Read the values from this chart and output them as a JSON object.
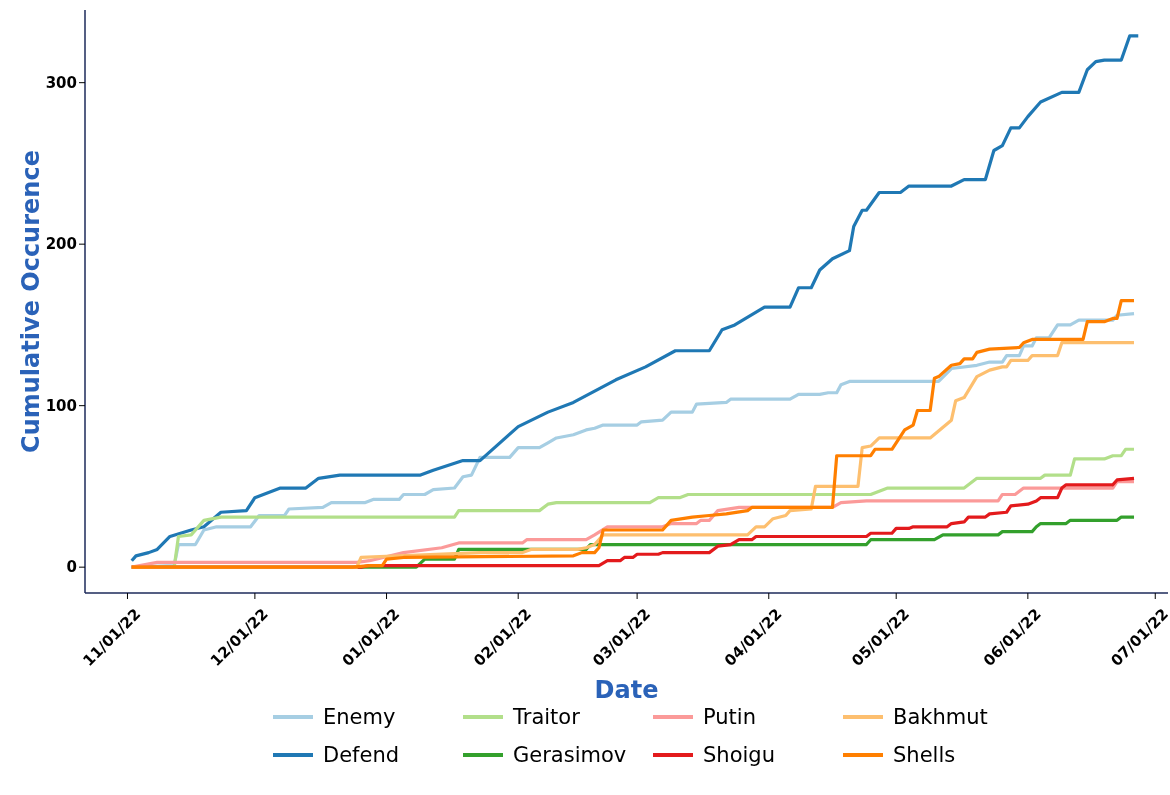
{
  "chart_data": {
    "type": "line",
    "xlabel": "Date",
    "ylabel": "Cumulative Occurence",
    "xlim": [
      "2022-10-22",
      "2023-07-04"
    ],
    "ylim": [
      -16,
      345
    ],
    "xticks": [
      {
        "value": "2022-11-01",
        "label": "11/01/22"
      },
      {
        "value": "2022-12-01",
        "label": "12/01/22"
      },
      {
        "value": "2023-01-01",
        "label": "01/01/22"
      },
      {
        "value": "2023-02-01",
        "label": "02/01/22"
      },
      {
        "value": "2023-03-01",
        "label": "03/01/22"
      },
      {
        "value": "2023-04-01",
        "label": "04/01/22"
      },
      {
        "value": "2023-05-01",
        "label": "05/01/22"
      },
      {
        "value": "2023-06-01",
        "label": "06/01/22"
      },
      {
        "value": "2023-07-01",
        "label": "07/01/22"
      }
    ],
    "yticks": [
      0,
      100,
      200,
      300
    ],
    "legend": "bottom",
    "line_style": "solid",
    "series": [
      {
        "name": "Enemy",
        "color": "#a6cee3",
        "x": [
          "2022-11-02",
          "2022-11-12",
          "2022-11-13",
          "2022-11-17",
          "2022-11-19",
          "2022-11-22",
          "2022-11-30",
          "2022-12-02",
          "2022-12-08",
          "2022-12-09",
          "2022-12-17",
          "2022-12-19",
          "2022-12-27",
          "2022-12-29",
          "2023-01-04",
          "2023-01-05",
          "2023-01-10",
          "2023-01-12",
          "2023-01-17",
          "2023-01-19",
          "2023-01-21",
          "2023-01-23",
          "2023-01-30",
          "2023-02-01",
          "2023-02-06",
          "2023-02-08",
          "2023-02-10",
          "2023-02-14",
          "2023-02-17",
          "2023-02-19",
          "2023-02-21",
          "2023-03-01",
          "2023-03-02",
          "2023-03-07",
          "2023-03-09",
          "2023-03-14",
          "2023-03-15",
          "2023-03-22",
          "2023-03-23",
          "2023-04-06",
          "2023-04-08",
          "2023-04-13",
          "2023-04-15",
          "2023-04-17",
          "2023-04-18",
          "2023-04-20",
          "2023-05-11",
          "2023-05-14",
          "2023-05-20",
          "2023-05-23",
          "2023-05-26",
          "2023-05-27",
          "2023-05-30",
          "2023-05-31",
          "2023-06-02",
          "2023-06-03",
          "2023-06-06",
          "2023-06-08",
          "2023-06-11",
          "2023-06-13",
          "2023-06-21",
          "2023-06-22",
          "2023-06-26"
        ],
        "values": [
          0,
          1,
          14,
          14,
          23,
          25,
          25,
          32,
          32,
          36,
          37,
          40,
          40,
          42,
          42,
          45,
          45,
          48,
          49,
          56,
          57,
          68,
          68,
          74,
          74,
          77,
          80,
          82,
          85,
          86,
          88,
          88,
          90,
          91,
          96,
          96,
          101,
          102,
          104,
          104,
          107,
          107,
          108,
          108,
          113,
          115,
          115,
          123,
          125,
          127,
          127,
          131,
          131,
          137,
          137,
          142,
          142,
          150,
          150,
          153,
          153,
          156,
          157
        ]
      },
      {
        "name": "Defend",
        "color": "#1f78b4",
        "x": [
          "2022-11-02",
          "2022-11-03",
          "2022-11-06",
          "2022-11-08",
          "2022-11-11",
          "2022-11-16",
          "2022-11-19",
          "2022-11-23",
          "2022-11-29",
          "2022-12-01",
          "2022-12-07",
          "2022-12-13",
          "2022-12-16",
          "2022-12-21",
          "2023-01-09",
          "2023-01-12",
          "2023-01-19",
          "2023-01-23",
          "2023-02-01",
          "2023-02-08",
          "2023-02-14",
          "2023-02-24",
          "2023-03-03",
          "2023-03-10",
          "2023-03-18",
          "2023-03-21",
          "2023-03-24",
          "2023-03-31",
          "2023-04-06",
          "2023-04-08",
          "2023-04-11",
          "2023-04-13",
          "2023-04-16",
          "2023-04-20",
          "2023-04-21",
          "2023-04-23",
          "2023-04-24",
          "2023-04-27",
          "2023-05-02",
          "2023-05-04",
          "2023-05-14",
          "2023-05-17",
          "2023-05-22",
          "2023-05-24",
          "2023-05-26",
          "2023-05-28",
          "2023-05-30",
          "2023-06-01",
          "2023-06-04",
          "2023-06-09",
          "2023-06-13",
          "2023-06-15",
          "2023-06-17",
          "2023-06-19",
          "2023-06-23",
          "2023-06-25",
          "2023-06-27"
        ],
        "values": [
          4,
          7,
          9,
          11,
          19,
          23,
          25,
          34,
          35,
          43,
          49,
          49,
          55,
          57,
          57,
          60,
          66,
          66,
          87,
          96,
          102,
          116,
          124,
          134,
          134,
          147,
          150,
          161,
          161,
          173,
          173,
          184,
          191,
          196,
          211,
          221,
          221,
          232,
          232,
          236,
          236,
          240,
          240,
          258,
          261,
          272,
          272,
          279,
          288,
          294,
          294,
          308,
          313,
          314,
          314,
          329,
          329
        ]
      },
      {
        "name": "Traitor",
        "color": "#b2df8a",
        "x": [
          "2022-11-02",
          "2022-11-12",
          "2022-11-13",
          "2022-11-16",
          "2022-11-19",
          "2022-11-23",
          "2023-01-17",
          "2023-01-18",
          "2023-02-06",
          "2023-02-08",
          "2023-02-10",
          "2023-03-04",
          "2023-03-06",
          "2023-03-11",
          "2023-03-13",
          "2023-04-25",
          "2023-04-27",
          "2023-04-29",
          "2023-05-17",
          "2023-05-20",
          "2023-06-04",
          "2023-06-05",
          "2023-06-11",
          "2023-06-12",
          "2023-06-19",
          "2023-06-21",
          "2023-06-23",
          "2023-06-24",
          "2023-06-26"
        ],
        "values": [
          0,
          0,
          19,
          20,
          29,
          31,
          31,
          35,
          35,
          39,
          40,
          40,
          43,
          43,
          45,
          45,
          47,
          49,
          49,
          55,
          55,
          57,
          57,
          67,
          67,
          69,
          69,
          73,
          73
        ]
      },
      {
        "name": "Gerasimov",
        "color": "#33a02c",
        "x": [
          "2022-11-02",
          "2023-01-08",
          "2023-01-10",
          "2023-01-17",
          "2023-01-18",
          "2023-02-17",
          "2023-02-18",
          "2023-04-24",
          "2023-04-25",
          "2023-05-10",
          "2023-05-12",
          "2023-05-25",
          "2023-05-26",
          "2023-06-02",
          "2023-06-03",
          "2023-06-04",
          "2023-06-10",
          "2023-06-11",
          "2023-06-22",
          "2023-06-23",
          "2023-06-26"
        ],
        "values": [
          0,
          0,
          5,
          5,
          11,
          11,
          14,
          14,
          17,
          17,
          20,
          20,
          22,
          22,
          25,
          27,
          27,
          29,
          29,
          31,
          31
        ]
      },
      {
        "name": "Putin",
        "color": "#fb9a99",
        "x": [
          "2022-11-02",
          "2022-11-08",
          "2022-12-25",
          "2022-12-28",
          "2023-01-05",
          "2023-01-14",
          "2023-01-18",
          "2023-02-02",
          "2023-02-03",
          "2023-02-17",
          "2023-02-19",
          "2023-02-22",
          "2023-03-07",
          "2023-03-09",
          "2023-03-15",
          "2023-03-16",
          "2023-03-18",
          "2023-03-20",
          "2023-03-25",
          "2023-04-16",
          "2023-04-18",
          "2023-04-24",
          "2023-05-25",
          "2023-05-26",
          "2023-05-29",
          "2023-05-31",
          "2023-06-21",
          "2023-06-22",
          "2023-06-26"
        ],
        "values": [
          0,
          3,
          3,
          4,
          9,
          12,
          15,
          15,
          17,
          17,
          20,
          25,
          25,
          27,
          27,
          29,
          29,
          35,
          37,
          37,
          40,
          41,
          41,
          45,
          45,
          49,
          49,
          53,
          53
        ]
      },
      {
        "name": "Shoigu",
        "color": "#e31a1c",
        "x": [
          "2022-11-02",
          "2022-12-26",
          "2022-12-28",
          "2023-02-20",
          "2023-02-22",
          "2023-02-25",
          "2023-02-26",
          "2023-02-28",
          "2023-03-01",
          "2023-03-06",
          "2023-03-07",
          "2023-03-18",
          "2023-03-20",
          "2023-03-23",
          "2023-03-25",
          "2023-03-28",
          "2023-03-29",
          "2023-04-24",
          "2023-04-25",
          "2023-04-30",
          "2023-05-01",
          "2023-05-04",
          "2023-05-05",
          "2023-05-13",
          "2023-05-14",
          "2023-05-17",
          "2023-05-18",
          "2023-05-22",
          "2023-05-23",
          "2023-05-27",
          "2023-05-28",
          "2023-06-01",
          "2023-06-03",
          "2023-06-04",
          "2023-06-08",
          "2023-06-09",
          "2023-06-10",
          "2023-06-21",
          "2023-06-22",
          "2023-06-26"
        ],
        "values": [
          0,
          0,
          1,
          1,
          4,
          4,
          6,
          6,
          8,
          8,
          9,
          9,
          13,
          14,
          17,
          17,
          19,
          19,
          21,
          21,
          24,
          24,
          25,
          25,
          27,
          28,
          31,
          31,
          33,
          34,
          38,
          39,
          41,
          43,
          43,
          49,
          51,
          51,
          54,
          55
        ]
      },
      {
        "name": "Bakhmut",
        "color": "#fdbf6f",
        "x": [
          "2022-11-02",
          "2022-12-25",
          "2022-12-26",
          "2023-01-23",
          "2023-02-02",
          "2023-02-04",
          "2023-02-15",
          "2023-02-17",
          "2023-02-19",
          "2023-02-21",
          "2023-03-27",
          "2023-03-29",
          "2023-03-31",
          "2023-04-02",
          "2023-04-05",
          "2023-04-06",
          "2023-04-11",
          "2023-04-12",
          "2023-04-22",
          "2023-04-23",
          "2023-04-25",
          "2023-04-27",
          "2023-05-09",
          "2023-05-14",
          "2023-05-15",
          "2023-05-17",
          "2023-05-20",
          "2023-05-23",
          "2023-05-26",
          "2023-05-27",
          "2023-05-28",
          "2023-06-01",
          "2023-06-02",
          "2023-06-08",
          "2023-06-09",
          "2023-06-26"
        ],
        "values": [
          0,
          0,
          6,
          9,
          9,
          11,
          11,
          12,
          14,
          20,
          20,
          25,
          25,
          30,
          32,
          35,
          36,
          50,
          50,
          74,
          75,
          80,
          80,
          91,
          103,
          105,
          118,
          122,
          124,
          124,
          128,
          128,
          131,
          131,
          139,
          139
        ]
      },
      {
        "name": "Shells",
        "color": "#ff7f00",
        "x": [
          "2022-11-02",
          "2022-12-24",
          "2022-12-28",
          "2022-12-31",
          "2023-01-01",
          "2023-01-05",
          "2023-02-14",
          "2023-02-16",
          "2023-02-19",
          "2023-02-20",
          "2023-02-21",
          "2023-03-07",
          "2023-03-09",
          "2023-03-14",
          "2023-03-18",
          "2023-03-22",
          "2023-03-27",
          "2023-03-28",
          "2023-04-16",
          "2023-04-17",
          "2023-04-25",
          "2023-04-26",
          "2023-04-30",
          "2023-05-03",
          "2023-05-05",
          "2023-05-06",
          "2023-05-09",
          "2023-05-10",
          "2023-05-11",
          "2023-05-14",
          "2023-05-16",
          "2023-05-17",
          "2023-05-19",
          "2023-05-20",
          "2023-05-23",
          "2023-05-30",
          "2023-05-31",
          "2023-06-02",
          "2023-06-14",
          "2023-06-15",
          "2023-06-19",
          "2023-06-21",
          "2023-06-22",
          "2023-06-23",
          "2023-06-26"
        ],
        "values": [
          0,
          0,
          1,
          1,
          5,
          6,
          7,
          9,
          9,
          12,
          23,
          23,
          29,
          31,
          32,
          33,
          35,
          37,
          37,
          69,
          69,
          73,
          73,
          85,
          88,
          97,
          97,
          117,
          118,
          125,
          126,
          129,
          129,
          133,
          135,
          136,
          139,
          141,
          141,
          152,
          152,
          154,
          154,
          165,
          165
        ]
      }
    ]
  }
}
